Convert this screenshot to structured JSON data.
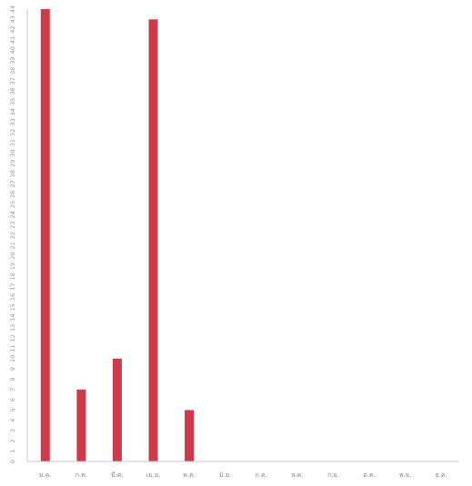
{
  "chart_data": {
    "type": "bar",
    "categories": [
      "ม.ค.",
      "ก.พ.",
      "มี.ค.",
      "เม.ย.",
      "พ.ค.",
      "มิ.ย.",
      "ก.ค.",
      "ส.ค.",
      "ก.ย.",
      "ต.ค.",
      "พ.ย.",
      "ธ.ค."
    ],
    "values": [
      44,
      7,
      10,
      43,
      5,
      0,
      0,
      0,
      0,
      0,
      0,
      0
    ],
    "title": "",
    "xlabel": "",
    "ylabel": "",
    "ylim": [
      0,
      44
    ],
    "y_ticks": [
      0,
      1,
      2,
      3,
      4,
      5,
      6,
      7,
      8,
      9,
      10,
      11,
      12,
      13,
      14,
      15,
      16,
      17,
      18,
      19,
      20,
      21,
      22,
      23,
      24,
      25,
      26,
      27,
      28,
      29,
      30,
      31,
      32,
      33,
      34,
      35,
      36,
      37,
      38,
      39,
      40,
      41,
      42,
      43,
      44
    ],
    "grid": false,
    "legend": "none",
    "bar_color": "#cf3a4b",
    "axis_color": "#c8c8c8"
  }
}
